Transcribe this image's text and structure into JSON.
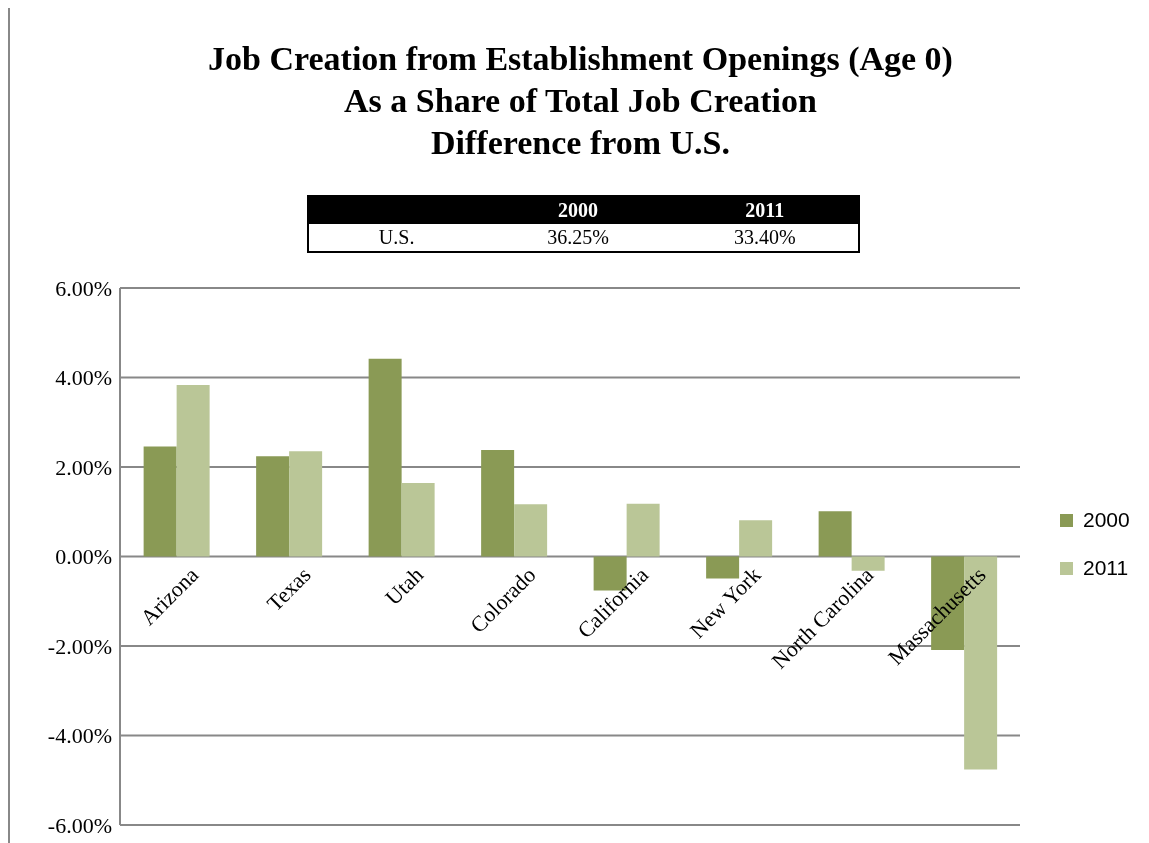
{
  "chart_data": {
    "type": "bar",
    "title": "Job Creation from Establishment Openings (Age 0)\nAs a Share of Total Job Creation",
    "subtitle": "Difference from U.S.",
    "annotations": [
      "2000",
      "2011",
      "U.S.",
      "36.25%",
      "33.40%"
    ],
    "categories": [
      "Arizona",
      "Texas",
      "Utah",
      "Colorado",
      "California",
      "New York",
      "North Carolina",
      "Massachusetts"
    ],
    "series": [
      {
        "name": "2000",
        "color": "#8a9a55",
        "values": [
          2.46,
          2.24,
          4.42,
          2.38,
          -0.76,
          -0.49,
          1.01,
          -2.09
        ]
      },
      {
        "name": "2011",
        "color": "#bac697",
        "values": [
          3.83,
          2.35,
          1.64,
          1.17,
          1.18,
          0.81,
          -0.32,
          -4.76
        ]
      }
    ],
    "ylim": [
      -6,
      6
    ],
    "yticks": [
      {
        "value": -6,
        "label": "-6.00%"
      },
      {
        "value": -4,
        "label": "-4.00%"
      },
      {
        "value": -2,
        "label": "-2.00%"
      },
      {
        "value": 0,
        "label": "0.00%"
      },
      {
        "value": 2,
        "label": "2.00%"
      },
      {
        "value": 4,
        "label": "4.00%"
      },
      {
        "value": 6,
        "label": "6.00%"
      }
    ],
    "grid": "y",
    "legend": "right"
  }
}
